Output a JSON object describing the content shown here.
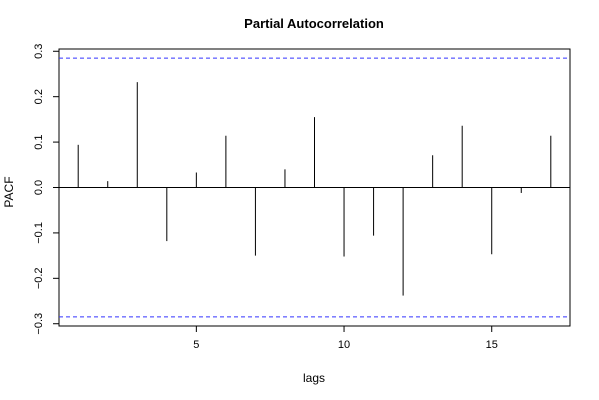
{
  "chart_data": {
    "type": "bar",
    "title": "Partial Autocorrelation",
    "xlabel": "lags",
    "ylabel": "PACF",
    "x": [
      1,
      2,
      3,
      4,
      5,
      6,
      7,
      8,
      9,
      10,
      11,
      12,
      13,
      14,
      15,
      16,
      17
    ],
    "values": [
      0.094,
      0.014,
      0.232,
      -0.118,
      0.033,
      0.114,
      -0.15,
      0.04,
      0.155,
      -0.152,
      -0.106,
      -0.238,
      0.071,
      0.136,
      -0.147,
      -0.012,
      0.114
    ],
    "xlim": [
      0.35,
      17.65
    ],
    "ylim": [
      -0.305,
      0.305
    ],
    "x_ticks": [
      5,
      10,
      15
    ],
    "y_ticks": [
      -0.3,
      -0.2,
      -0.1,
      0.0,
      0.1,
      0.2,
      0.3
    ],
    "y_tick_labels": [
      "−0.3",
      "−0.2",
      "−0.1",
      "0.0",
      "0.1",
      "0.2",
      "0.3"
    ],
    "confidence_bound": 0.285,
    "bar_color": "#000000",
    "bound_color": "#3333ff",
    "zero_line": true,
    "grid": false
  }
}
